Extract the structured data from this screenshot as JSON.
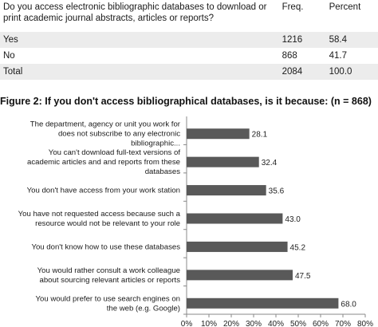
{
  "table": {
    "headers": [
      "Do you access electronic bibliographic databases to download or print academic journal abstracts, articles or reports?",
      "Freq.",
      "Percent"
    ],
    "rows": [
      [
        "Yes",
        "1216",
        "58.4"
      ],
      [
        "No",
        "868",
        "41.7"
      ],
      [
        "Total",
        "2084",
        "100.0"
      ]
    ]
  },
  "figure_title": "Figure 2: If you don't access bibliographical databases, is it because: (n = 868)",
  "chart_data": {
    "type": "bar",
    "orientation": "horizontal",
    "categories": [
      "The department, agency or unit you work for does not subscribe to any electronic bibliographic...",
      "You can't download full-text versions of academic articles and and reports from these databases",
      "You don't have access from your work station",
      "You have not requested access because such a resource would not be relevant to your role",
      "You don't know how to use these databases",
      "You would rather consult a work colleague about sourcing relevant articles or reports",
      "You would prefer to use search engines on the web (e.g. Google)"
    ],
    "values": [
      28.1,
      32.4,
      35.6,
      43.0,
      45.2,
      47.5,
      68.0
    ],
    "value_labels": [
      "28.1",
      "32.4",
      "35.6",
      "43.0",
      "45.2",
      "47.5",
      "68.0"
    ],
    "xlim": [
      0,
      80
    ],
    "x_ticks": [
      "0%",
      "10%",
      "20%",
      "30%",
      "40%",
      "50%",
      "60%",
      "70%",
      "80%"
    ],
    "bar_color": "#595959",
    "grid": false
  }
}
